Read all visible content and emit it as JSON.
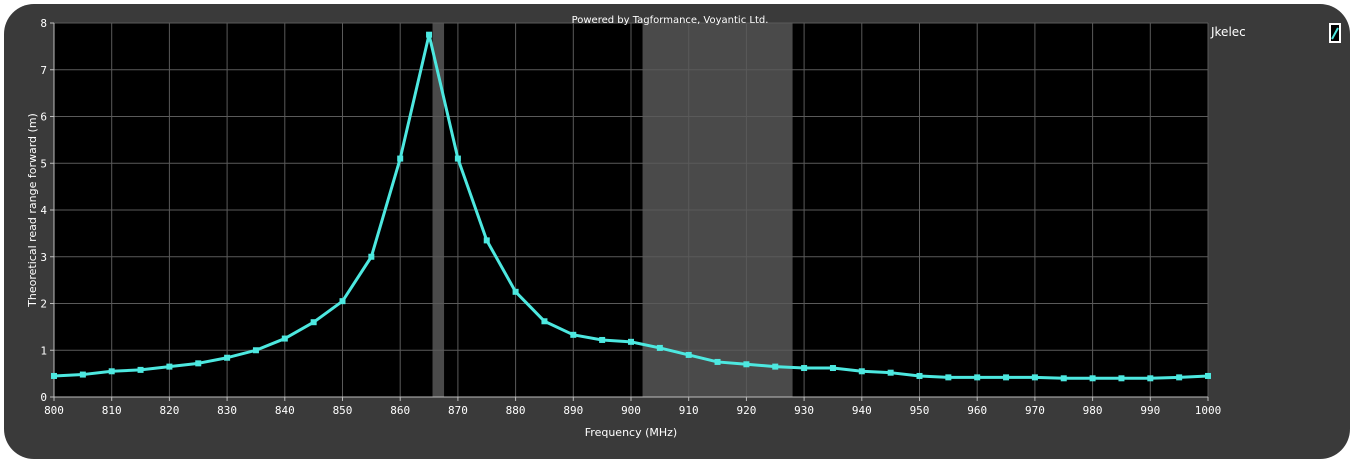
{
  "credit": "Powered by Tagformance, Voyantic Ltd.",
  "chart_data": {
    "type": "line",
    "title": "",
    "xlabel": "Frequency (MHz)",
    "ylabel": "Theoretical read range forward (m)",
    "xlim": [
      800,
      1000
    ],
    "ylim": [
      0,
      8
    ],
    "xticks": [
      800,
      810,
      820,
      830,
      840,
      850,
      860,
      870,
      880,
      890,
      900,
      910,
      920,
      930,
      940,
      950,
      960,
      970,
      980,
      990,
      1000
    ],
    "yticks": [
      0,
      1,
      2,
      3,
      4,
      5,
      6,
      7,
      8
    ],
    "grid": true,
    "legend_position": "top-right",
    "highlight_bands": [
      {
        "x_start": 865.6,
        "x_end": 867.6
      },
      {
        "x_start": 902,
        "x_end": 928
      }
    ],
    "series": [
      {
        "name": "Jkelec",
        "color": "#4de8e0",
        "x": [
          800,
          805,
          810,
          815,
          820,
          825,
          830,
          835,
          840,
          845,
          850,
          855,
          860,
          865,
          870,
          875,
          880,
          885,
          890,
          895,
          900,
          905,
          910,
          915,
          920,
          925,
          930,
          935,
          940,
          945,
          950,
          955,
          960,
          965,
          970,
          975,
          980,
          985,
          990,
          995,
          1000
        ],
        "y": [
          0.45,
          0.48,
          0.55,
          0.58,
          0.65,
          0.72,
          0.84,
          1.0,
          1.25,
          1.6,
          2.05,
          3.0,
          5.1,
          7.75,
          5.1,
          3.35,
          2.25,
          1.62,
          1.33,
          1.22,
          1.18,
          1.05,
          0.9,
          0.75,
          0.7,
          0.65,
          0.62,
          0.62,
          0.55,
          0.52,
          0.45,
          0.42,
          0.42,
          0.42,
          0.42,
          0.4,
          0.4,
          0.4,
          0.4,
          0.42,
          0.45
        ]
      }
    ]
  },
  "legend_marker_icon": "line-swatch-icon"
}
